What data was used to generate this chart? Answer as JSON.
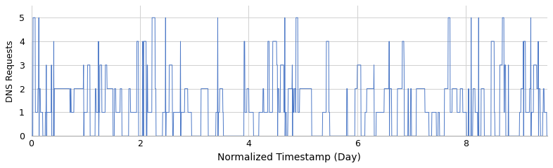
{
  "title": "",
  "xlabel": "Normalized Timestamp (Day)",
  "ylabel": "DNS Requests",
  "xlim": [
    0,
    9.5
  ],
  "ylim": [
    0,
    5.5
  ],
  "yticks": [
    0,
    1,
    2,
    3,
    4,
    5
  ],
  "xticks": [
    0,
    2,
    4,
    6,
    8
  ],
  "line_color": "#4d79c7",
  "line_width": 0.7,
  "bg_color": "#ffffff",
  "grid_color": "#d0d0d0",
  "xlabel_fontsize": 10,
  "ylabel_fontsize": 9,
  "tick_fontsize": 9,
  "seed": 7,
  "n_points": 1800,
  "x_end": 9.5
}
